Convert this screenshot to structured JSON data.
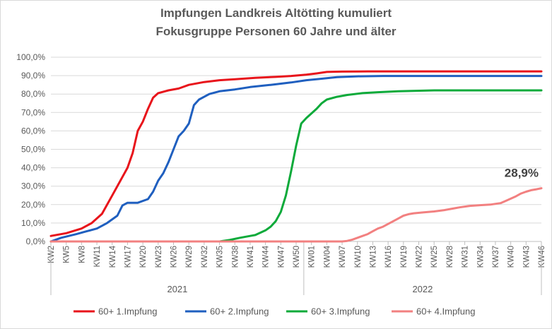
{
  "chart_data": {
    "type": "line",
    "title": "Impfungen Landkreis Altötting kumuliert",
    "subtitle": "Fokusgruppe Personen 60 Jahre und älter",
    "ylim": [
      0,
      100
    ],
    "y_ticks": [
      "0,0%",
      "10,0%",
      "20,0%",
      "30,0%",
      "40,0%",
      "50,0%",
      "60,0%",
      "70,0%",
      "80,0%",
      "90,0%",
      "100,0%"
    ],
    "x_tick_labels": [
      "KW2",
      "KW5",
      "KW8",
      "KW11",
      "KW14",
      "KW17",
      "KW20",
      "KW23",
      "KW26",
      "KW29",
      "KW32",
      "KW35",
      "KW38",
      "KW41",
      "KW44",
      "KW47",
      "KW50",
      "KW01",
      "KW04",
      "KW07",
      "KW10",
      "KW13",
      "KW16",
      "KW19",
      "KW22",
      "KW25",
      "KW28",
      "KW31",
      "KW34",
      "KW37",
      "KW40",
      "KW43",
      "KW46"
    ],
    "year_groups": [
      "2021",
      "2022"
    ],
    "annotation": "28,9%",
    "grid": true,
    "legend_position": "bottom",
    "series": [
      {
        "name": "60+ 1.Impfung",
        "color": "#e8141b",
        "points": [
          [
            0,
            3
          ],
          [
            3,
            4.5
          ],
          [
            6,
            7
          ],
          [
            8,
            10
          ],
          [
            10,
            15
          ],
          [
            12,
            25
          ],
          [
            14,
            35
          ],
          [
            15,
            40
          ],
          [
            16,
            48
          ],
          [
            17,
            60
          ],
          [
            18,
            65
          ],
          [
            19,
            72
          ],
          [
            20,
            78
          ],
          [
            21,
            80.5
          ],
          [
            23,
            82
          ],
          [
            25,
            83
          ],
          [
            27,
            85
          ],
          [
            30,
            86.5
          ],
          [
            33,
            87.5
          ],
          [
            36,
            88
          ],
          [
            40,
            88.8
          ],
          [
            44,
            89.3
          ],
          [
            47,
            89.8
          ],
          [
            50,
            90.5
          ],
          [
            52,
            91.2
          ],
          [
            54,
            92
          ],
          [
            57,
            92.2
          ],
          [
            62,
            92.3
          ],
          [
            70,
            92.3
          ],
          [
            80,
            92.3
          ],
          [
            96,
            92.3
          ]
        ]
      },
      {
        "name": "60+ 2.Impfung",
        "color": "#1f5fbf",
        "points": [
          [
            0,
            0
          ],
          [
            2,
            2
          ],
          [
            5,
            4
          ],
          [
            7,
            5.5
          ],
          [
            9,
            7
          ],
          [
            11,
            10
          ],
          [
            13,
            14
          ],
          [
            14,
            19.5
          ],
          [
            15,
            21
          ],
          [
            17,
            21
          ],
          [
            19,
            23
          ],
          [
            20,
            27
          ],
          [
            21,
            33
          ],
          [
            22,
            37
          ],
          [
            23,
            43
          ],
          [
            24,
            50
          ],
          [
            25,
            57
          ],
          [
            26,
            60
          ],
          [
            27,
            64
          ],
          [
            28,
            74
          ],
          [
            29,
            77
          ],
          [
            31,
            80
          ],
          [
            33,
            81.5
          ],
          [
            36,
            82.5
          ],
          [
            39,
            83.8
          ],
          [
            43,
            85
          ],
          [
            47,
            86.3
          ],
          [
            50,
            87.5
          ],
          [
            53,
            88.3
          ],
          [
            56,
            89.2
          ],
          [
            60,
            89.6
          ],
          [
            65,
            89.8
          ],
          [
            70,
            89.8
          ],
          [
            96,
            89.8
          ]
        ]
      },
      {
        "name": "60+ 3.Impfung",
        "color": "#0daa3a",
        "points": [
          [
            0,
            0
          ],
          [
            33,
            0
          ],
          [
            35,
            0.8
          ],
          [
            37,
            2
          ],
          [
            39,
            3
          ],
          [
            40,
            3.5
          ],
          [
            42,
            6
          ],
          [
            43,
            8
          ],
          [
            44,
            11
          ],
          [
            45,
            16
          ],
          [
            46,
            25
          ],
          [
            47,
            38
          ],
          [
            48,
            52
          ],
          [
            49,
            64
          ],
          [
            50,
            67
          ],
          [
            51,
            69.5
          ],
          [
            52,
            72
          ],
          [
            53,
            75
          ],
          [
            54,
            77
          ],
          [
            56,
            78.5
          ],
          [
            58,
            79.5
          ],
          [
            61,
            80.5
          ],
          [
            64,
            81
          ],
          [
            68,
            81.5
          ],
          [
            75,
            82
          ],
          [
            85,
            82
          ],
          [
            96,
            82
          ]
        ]
      },
      {
        "name": "60+ 4.Impfung",
        "color": "#f28080",
        "points": [
          [
            0,
            0
          ],
          [
            57,
            0
          ],
          [
            58,
            0.3
          ],
          [
            59,
            1
          ],
          [
            60,
            2
          ],
          [
            61,
            3
          ],
          [
            62,
            4
          ],
          [
            63,
            5.5
          ],
          [
            64,
            7
          ],
          [
            65,
            8
          ],
          [
            66,
            9.5
          ],
          [
            67,
            11
          ],
          [
            68,
            12.5
          ],
          [
            69,
            14
          ],
          [
            70,
            14.8
          ],
          [
            71,
            15.3
          ],
          [
            73,
            15.8
          ],
          [
            75,
            16.3
          ],
          [
            77,
            17
          ],
          [
            79,
            18
          ],
          [
            80,
            18.5
          ],
          [
            82,
            19.3
          ],
          [
            84,
            19.7
          ],
          [
            86,
            20
          ],
          [
            88,
            20.8
          ],
          [
            89,
            22
          ],
          [
            90,
            23.2
          ],
          [
            91,
            24.5
          ],
          [
            92,
            26
          ],
          [
            93,
            27
          ],
          [
            94,
            27.8
          ],
          [
            95,
            28.3
          ],
          [
            96,
            28.9
          ]
        ]
      }
    ]
  }
}
